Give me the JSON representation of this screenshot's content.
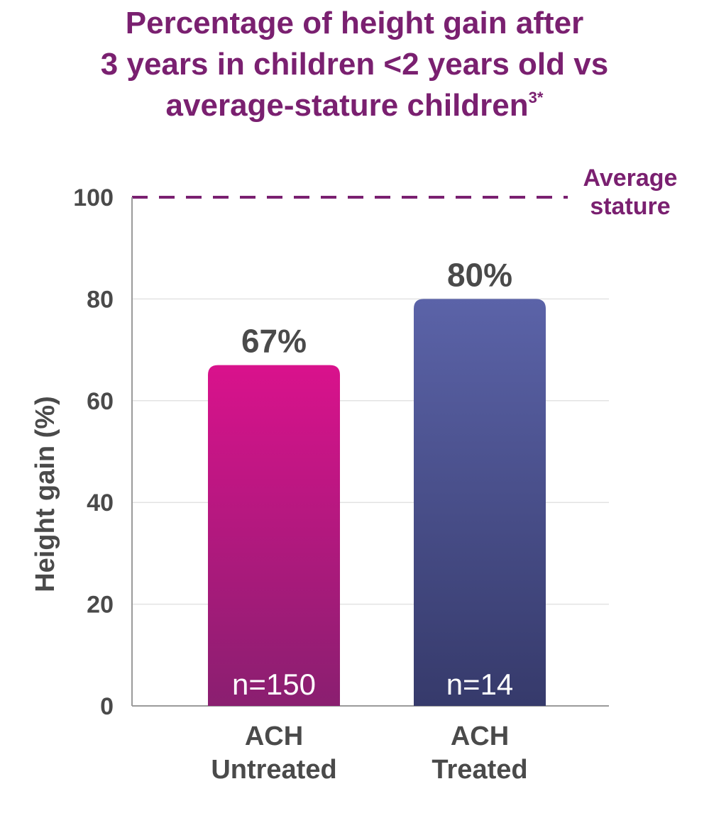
{
  "title": {
    "line1": "Percentage of height gain after",
    "line2": "3 years in children <2 years old vs",
    "line3": "average-stature children",
    "superscript": "3*"
  },
  "colors": {
    "title": "#7a2070",
    "reference_line": "#7a2070",
    "text": "#4a4a4a",
    "gridline": "#e3e3e3",
    "axis": "#9a9a9a"
  },
  "chart_data": {
    "type": "bar",
    "categories": [
      [
        "ACH",
        "Untreated"
      ],
      [
        "ACH",
        "Treated"
      ]
    ],
    "values": [
      67,
      80
    ],
    "value_labels": [
      "67%",
      "80%"
    ],
    "sample_sizes": [
      "n=150",
      "n=14"
    ],
    "bar_colors": [
      {
        "top": "#d9128c",
        "bottom": "#8a1f70"
      },
      {
        "top": "#5b63a8",
        "bottom": "#363a6b"
      }
    ],
    "ylabel": "Height gain (%)",
    "xlabel": "",
    "ylim": [
      0,
      100
    ],
    "yticks": [
      "0",
      "20",
      "40",
      "60",
      "80",
      "100"
    ],
    "grid": true,
    "reference_line": {
      "value": 100,
      "label_line1": "Average",
      "label_line2": "stature",
      "style": "dashed"
    }
  }
}
